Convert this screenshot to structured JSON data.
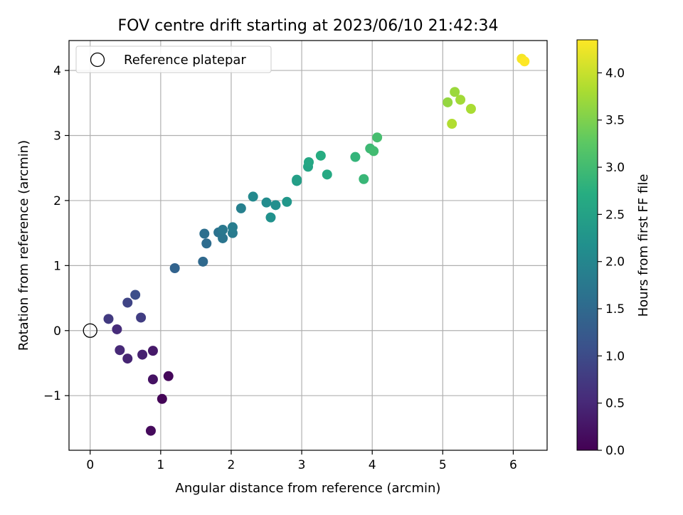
{
  "chart_data": {
    "type": "scatter",
    "title": "FOV centre drift starting at 2023/06/10 21:42:34",
    "xlabel": "Angular distance from reference (arcmin)",
    "ylabel": "Rotation from reference (arcmin)",
    "xlim": [
      -0.3,
      6.48
    ],
    "ylim": [
      -1.84,
      4.46
    ],
    "x_ticks": [
      0,
      1,
      2,
      3,
      4,
      5,
      6
    ],
    "y_ticks": [
      -1,
      0,
      1,
      2,
      3,
      4
    ],
    "grid": true,
    "legend": {
      "location": "top-left",
      "entries": [
        "Reference platepar"
      ]
    },
    "reference_point": {
      "x": 0,
      "y": 0
    },
    "colorbar": {
      "label": "Hours from first FF file",
      "min": 0.0,
      "max": 4.35,
      "colormap": "viridis",
      "ticks": [
        "0.0",
        "0.5",
        "1.0",
        "1.5",
        "2.0",
        "2.5",
        "3.0",
        "3.5",
        "4.0"
      ]
    },
    "points": [
      {
        "x": 1.02,
        "y": -1.05,
        "c": 0.05
      },
      {
        "x": 1.11,
        "y": -0.7,
        "c": 0.08
      },
      {
        "x": 0.86,
        "y": -1.54,
        "c": 0.12
      },
      {
        "x": 0.89,
        "y": -0.75,
        "c": 0.22
      },
      {
        "x": 0.89,
        "y": -0.31,
        "c": 0.3
      },
      {
        "x": 0.74,
        "y": -0.37,
        "c": 0.4
      },
      {
        "x": 0.53,
        "y": -0.43,
        "c": 0.45
      },
      {
        "x": 0.42,
        "y": -0.3,
        "c": 0.5
      },
      {
        "x": 0.38,
        "y": 0.02,
        "c": 0.55
      },
      {
        "x": 0.26,
        "y": 0.18,
        "c": 0.75
      },
      {
        "x": 0.72,
        "y": 0.2,
        "c": 0.8
      },
      {
        "x": 0.53,
        "y": 0.43,
        "c": 0.9
      },
      {
        "x": 0.64,
        "y": 0.55,
        "c": 1.05
      },
      {
        "x": 1.2,
        "y": 0.96,
        "c": 1.4
      },
      {
        "x": 1.6,
        "y": 1.06,
        "c": 1.5
      },
      {
        "x": 1.65,
        "y": 1.34,
        "c": 1.55
      },
      {
        "x": 1.62,
        "y": 1.49,
        "c": 1.6
      },
      {
        "x": 1.82,
        "y": 1.51,
        "c": 1.65
      },
      {
        "x": 1.88,
        "y": 1.42,
        "c": 1.7
      },
      {
        "x": 1.88,
        "y": 1.55,
        "c": 1.75
      },
      {
        "x": 2.02,
        "y": 1.5,
        "c": 1.8
      },
      {
        "x": 2.02,
        "y": 1.59,
        "c": 1.85
      },
      {
        "x": 2.14,
        "y": 1.88,
        "c": 1.9
      },
      {
        "x": 2.31,
        "y": 2.06,
        "c": 2.05
      },
      {
        "x": 2.5,
        "y": 1.97,
        "c": 2.1
      },
      {
        "x": 2.63,
        "y": 1.93,
        "c": 2.15
      },
      {
        "x": 2.56,
        "y": 1.74,
        "c": 2.2
      },
      {
        "x": 2.79,
        "y": 1.98,
        "c": 2.3
      },
      {
        "x": 2.93,
        "y": 2.3,
        "c": 2.4
      },
      {
        "x": 2.93,
        "y": 2.32,
        "c": 2.45
      },
      {
        "x": 3.09,
        "y": 2.52,
        "c": 2.55
      },
      {
        "x": 3.1,
        "y": 2.59,
        "c": 2.6
      },
      {
        "x": 3.36,
        "y": 2.4,
        "c": 2.65
      },
      {
        "x": 3.27,
        "y": 2.69,
        "c": 2.7
      },
      {
        "x": 3.76,
        "y": 2.67,
        "c": 2.85
      },
      {
        "x": 3.88,
        "y": 2.33,
        "c": 2.9
      },
      {
        "x": 3.97,
        "y": 2.8,
        "c": 2.95
      },
      {
        "x": 4.02,
        "y": 2.76,
        "c": 3.0
      },
      {
        "x": 4.07,
        "y": 2.97,
        "c": 3.05
      },
      {
        "x": 5.07,
        "y": 3.51,
        "c": 3.65
      },
      {
        "x": 5.17,
        "y": 3.67,
        "c": 3.7
      },
      {
        "x": 5.25,
        "y": 3.55,
        "c": 3.75
      },
      {
        "x": 5.4,
        "y": 3.41,
        "c": 3.8
      },
      {
        "x": 5.13,
        "y": 3.18,
        "c": 3.85
      },
      {
        "x": 6.12,
        "y": 4.18,
        "c": 4.3
      },
      {
        "x": 6.16,
        "y": 4.14,
        "c": 4.35
      }
    ]
  }
}
